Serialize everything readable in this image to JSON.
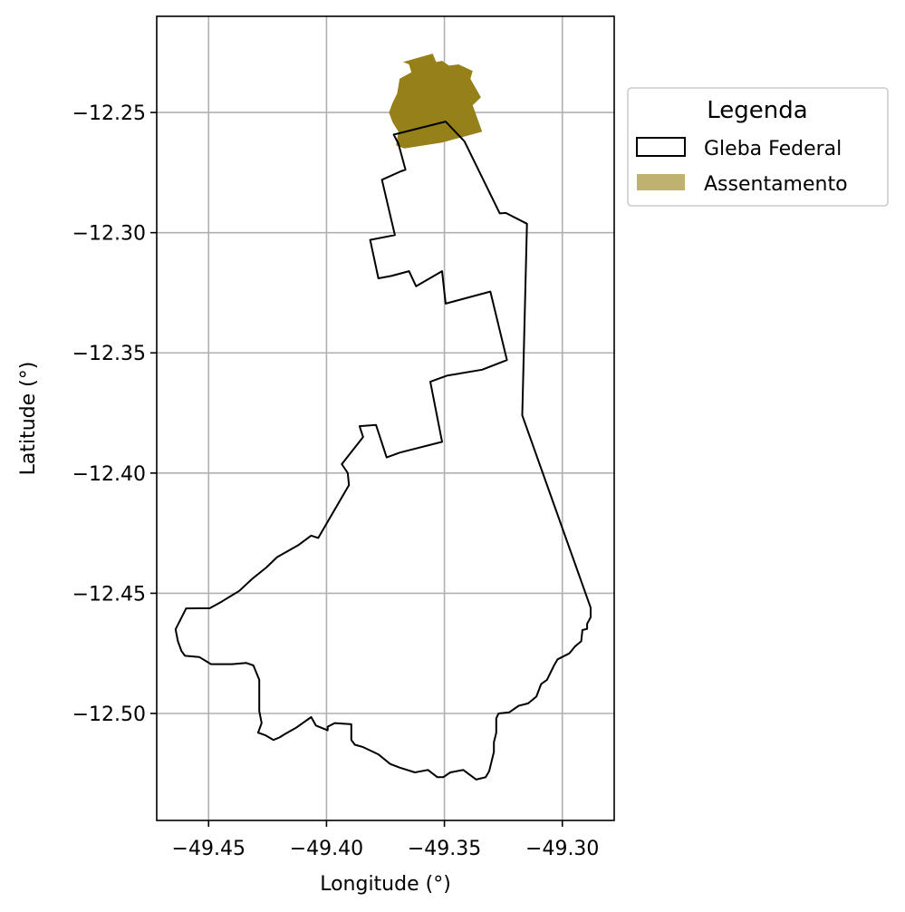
{
  "chart_data": {
    "type": "map",
    "xlabel": "Longitude (°)",
    "ylabel": "Latitude (°)",
    "xlim": [
      -49.472,
      -49.278
    ],
    "ylim": [
      -12.5445,
      -12.21
    ],
    "xticks": [
      {
        "value": -49.45,
        "label": "−49.45"
      },
      {
        "value": -49.4,
        "label": "−49.40"
      },
      {
        "value": -49.35,
        "label": "−49.35"
      },
      {
        "value": -49.3,
        "label": "−49.30"
      }
    ],
    "yticks": [
      {
        "value": -12.25,
        "label": "−12.25"
      },
      {
        "value": -12.3,
        "label": "−12.30"
      },
      {
        "value": -12.35,
        "label": "−12.35"
      },
      {
        "value": -12.4,
        "label": "−12.40"
      },
      {
        "value": -12.45,
        "label": "−12.45"
      },
      {
        "value": -12.5,
        "label": "−12.50"
      }
    ],
    "grid": true,
    "legend": {
      "title": "Legenda",
      "placement": "outside-right-top",
      "entries": [
        {
          "label": "Gleba Federal",
          "style": "outline",
          "edge_color": "#000000",
          "fill_color": "none"
        },
        {
          "label": "Assentamento",
          "style": "filled",
          "fill_color": "#bfb170"
        }
      ]
    },
    "series": [
      {
        "name": "Gleba Federal",
        "geometry": "polygon",
        "edge_color": "#000000",
        "fill_color": "none",
        "coordinates": [
          [
            -49.3715,
            -12.2592
          ],
          [
            -49.3495,
            -12.2538
          ],
          [
            -49.3415,
            -12.262
          ],
          [
            -49.3265,
            -12.292
          ],
          [
            -49.324,
            -12.2918
          ],
          [
            -49.315,
            -12.2963
          ],
          [
            -49.317,
            -12.376
          ],
          [
            -49.288,
            -12.456
          ],
          [
            -49.288,
            -12.46
          ],
          [
            -49.2895,
            -12.4627
          ],
          [
            -49.2895,
            -12.4648
          ],
          [
            -49.2915,
            -12.4653
          ],
          [
            -49.292,
            -12.47
          ],
          [
            -49.2945,
            -12.472
          ],
          [
            -49.297,
            -12.475
          ],
          [
            -49.302,
            -12.4775
          ],
          [
            -49.3035,
            -12.48
          ],
          [
            -49.3065,
            -12.486
          ],
          [
            -49.309,
            -12.4878
          ],
          [
            -49.311,
            -12.493
          ],
          [
            -49.3145,
            -12.4958
          ],
          [
            -49.3185,
            -12.4968
          ],
          [
            -49.3225,
            -12.4995
          ],
          [
            -49.327,
            -12.5
          ],
          [
            -49.328,
            -12.502
          ],
          [
            -49.328,
            -12.508
          ],
          [
            -49.329,
            -12.512
          ],
          [
            -49.329,
            -12.516
          ],
          [
            -49.331,
            -12.524
          ],
          [
            -49.3325,
            -12.5265
          ],
          [
            -49.3365,
            -12.5275
          ],
          [
            -49.342,
            -12.5235
          ],
          [
            -49.3475,
            -12.5245
          ],
          [
            -49.3505,
            -12.5265
          ],
          [
            -49.353,
            -12.5265
          ],
          [
            -49.357,
            -12.5235
          ],
          [
            -49.3625,
            -12.5245
          ],
          [
            -49.369,
            -12.5225
          ],
          [
            -49.373,
            -12.521
          ],
          [
            -49.378,
            -12.517
          ],
          [
            -49.3845,
            -12.514
          ],
          [
            -49.388,
            -12.513
          ],
          [
            -49.3895,
            -12.511
          ],
          [
            -49.3895,
            -12.5045
          ],
          [
            -49.3965,
            -12.504
          ],
          [
            -49.3995,
            -12.5055
          ],
          [
            -49.3995,
            -12.507
          ],
          [
            -49.4045,
            -12.505
          ],
          [
            -49.4065,
            -12.5015
          ],
          [
            -49.413,
            -12.506
          ],
          [
            -49.4175,
            -12.5085
          ],
          [
            -49.42,
            -12.51
          ],
          [
            -49.4225,
            -12.511
          ],
          [
            -49.426,
            -12.509
          ],
          [
            -49.429,
            -12.508
          ],
          [
            -49.4275,
            -12.504
          ],
          [
            -49.4285,
            -12.499
          ],
          [
            -49.4285,
            -12.496
          ],
          [
            -49.4285,
            -12.486
          ],
          [
            -49.431,
            -12.48
          ],
          [
            -49.434,
            -12.479
          ],
          [
            -49.44,
            -12.4795
          ],
          [
            -49.446,
            -12.4795
          ],
          [
            -49.449,
            -12.4795
          ],
          [
            -49.454,
            -12.4765
          ],
          [
            -49.46,
            -12.476
          ],
          [
            -49.4615,
            -12.474
          ],
          [
            -49.463,
            -12.47
          ],
          [
            -49.464,
            -12.465
          ],
          [
            -49.4595,
            -12.4563
          ],
          [
            -49.4495,
            -12.4562
          ],
          [
            -49.4445,
            -12.4535
          ],
          [
            -49.437,
            -12.449
          ],
          [
            -49.4315,
            -12.444
          ],
          [
            -49.4255,
            -12.4393
          ],
          [
            -49.421,
            -12.435
          ],
          [
            -49.412,
            -12.43
          ],
          [
            -49.4065,
            -12.426
          ],
          [
            -49.4035,
            -12.427
          ],
          [
            -49.3905,
            -12.405
          ],
          [
            -49.391,
            -12.4
          ],
          [
            -49.3935,
            -12.3963
          ],
          [
            -49.3845,
            -12.385
          ],
          [
            -49.386,
            -12.3805
          ],
          [
            -49.379,
            -12.38
          ],
          [
            -49.3745,
            -12.3935
          ],
          [
            -49.369,
            -12.3915
          ],
          [
            -49.351,
            -12.387
          ],
          [
            -49.356,
            -12.362
          ],
          [
            -49.349,
            -12.3595
          ],
          [
            -49.334,
            -12.357
          ],
          [
            -49.3235,
            -12.353
          ],
          [
            -49.3305,
            -12.3245
          ],
          [
            -49.3495,
            -12.3295
          ],
          [
            -49.351,
            -12.316
          ],
          [
            -49.362,
            -12.3223
          ],
          [
            -49.365,
            -12.316
          ],
          [
            -49.3725,
            -12.318
          ],
          [
            -49.378,
            -12.319
          ],
          [
            -49.3815,
            -12.303
          ],
          [
            -49.371,
            -12.301
          ],
          [
            -49.3765,
            -12.278
          ],
          [
            -49.3685,
            -12.2745
          ],
          [
            -49.3665,
            -12.2738
          ],
          [
            -49.3695,
            -12.263
          ]
        ]
      },
      {
        "name": "Assentamento",
        "geometry": "polygon",
        "edge_color": "none",
        "fill_color": "#968019",
        "coordinates": [
          [
            -49.3675,
            -12.229
          ],
          [
            -49.355,
            -12.2255
          ],
          [
            -49.3535,
            -12.229
          ],
          [
            -49.351,
            -12.2285
          ],
          [
            -49.348,
            -12.2305
          ],
          [
            -49.344,
            -12.23
          ],
          [
            -49.338,
            -12.2327
          ],
          [
            -49.339,
            -12.236
          ],
          [
            -49.3345,
            -12.2437
          ],
          [
            -49.338,
            -12.247
          ],
          [
            -49.334,
            -12.258
          ],
          [
            -49.351,
            -12.2625
          ],
          [
            -49.367,
            -12.265
          ],
          [
            -49.3705,
            -12.2637
          ],
          [
            -49.3695,
            -12.258
          ],
          [
            -49.372,
            -12.254
          ],
          [
            -49.3735,
            -12.25
          ],
          [
            -49.372,
            -12.246
          ],
          [
            -49.37,
            -12.242
          ],
          [
            -49.369,
            -12.236
          ],
          [
            -49.364,
            -12.2333
          ],
          [
            -49.365,
            -12.23
          ]
        ]
      }
    ]
  }
}
